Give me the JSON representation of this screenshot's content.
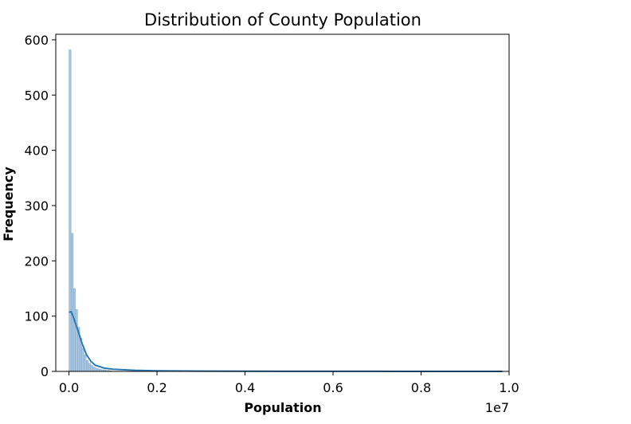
{
  "chart_data": {
    "type": "bar",
    "title": "Distribution of County Population",
    "xlabel": "Population",
    "ylabel": "Frequency",
    "x_offset_label": "1e7",
    "xlim": [
      -0.03,
      1.0
    ],
    "ylim": [
      0,
      610
    ],
    "x_ticks": [
      0.0,
      0.2,
      0.4,
      0.6,
      0.8,
      1.0
    ],
    "x_tick_labels": [
      "0.0",
      "0.2",
      "0.4",
      "0.6",
      "0.8",
      "1.0"
    ],
    "y_ticks": [
      0,
      100,
      200,
      300,
      400,
      500,
      600
    ],
    "y_tick_labels": [
      "0",
      "100",
      "200",
      "300",
      "400",
      "500",
      "600"
    ],
    "bin_width": 0.0049,
    "bins_x": [
      0.0,
      0.0049,
      0.0098,
      0.0147,
      0.0196,
      0.0245,
      0.0294,
      0.0343,
      0.0392,
      0.0441,
      0.049,
      0.0539,
      0.0588,
      0.0637,
      0.0686,
      0.0735,
      0.0784,
      0.0833,
      0.0882,
      0.0931
    ],
    "values": [
      582,
      250,
      150,
      112,
      80,
      60,
      42,
      30,
      20,
      15,
      11,
      8,
      6,
      5,
      4,
      3,
      3,
      2,
      2,
      1
    ],
    "kde": {
      "x": [
        0.0,
        0.005,
        0.01,
        0.02,
        0.03,
        0.04,
        0.05,
        0.06,
        0.08,
        0.1,
        0.15,
        0.2,
        0.3,
        0.5,
        0.7,
        0.9,
        0.985
      ],
      "y": [
        107,
        108,
        98,
        75,
        50,
        30,
        18,
        11,
        6,
        4,
        2,
        1,
        0.5,
        0.2,
        0.1,
        0.05,
        0
      ]
    },
    "grid": false,
    "colors": {
      "bar_fill": "#a6c4dd",
      "bar_edge": "#7ea7c9",
      "kde_line": "#2a7ab5",
      "axis": "#000000"
    }
  }
}
